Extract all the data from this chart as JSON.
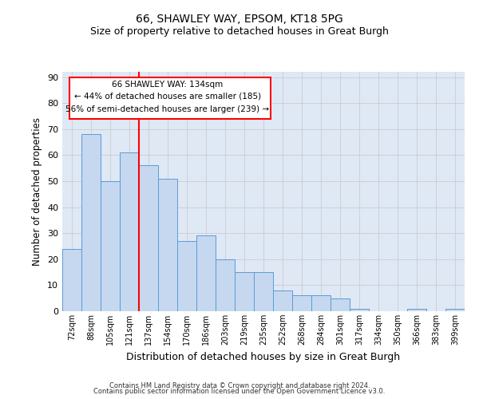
{
  "title1": "66, SHAWLEY WAY, EPSOM, KT18 5PG",
  "title2": "Size of property relative to detached houses in Great Burgh",
  "xlabel": "Distribution of detached houses by size in Great Burgh",
  "ylabel": "Number of detached properties",
  "categories": [
    "72sqm",
    "88sqm",
    "105sqm",
    "121sqm",
    "137sqm",
    "154sqm",
    "170sqm",
    "186sqm",
    "203sqm",
    "219sqm",
    "235sqm",
    "252sqm",
    "268sqm",
    "284sqm",
    "301sqm",
    "317sqm",
    "334sqm",
    "350sqm",
    "366sqm",
    "383sqm",
    "399sqm"
  ],
  "values": [
    24,
    68,
    50,
    61,
    56,
    51,
    27,
    29,
    20,
    15,
    15,
    8,
    6,
    6,
    5,
    1,
    0,
    0,
    1,
    0,
    1
  ],
  "bar_color": "#c5d8f0",
  "bar_edge_color": "#5b9bd5",
  "annotation_line1": "66 SHAWLEY WAY: 134sqm",
  "annotation_line2": "← 44% of detached houses are smaller (185)",
  "annotation_line3": "56% of semi-detached houses are larger (239) →",
  "grid_color": "#cccccc",
  "background_color": "#dfe8f5",
  "ylim": [
    0,
    92
  ],
  "yticks": [
    0,
    10,
    20,
    30,
    40,
    50,
    60,
    70,
    80,
    90
  ],
  "footer1": "Contains HM Land Registry data © Crown copyright and database right 2024.",
  "footer2": "Contains public sector information licensed under the Open Government Licence v3.0.",
  "title_fontsize": 10,
  "subtitle_fontsize": 9,
  "red_line_x": 3.5
}
